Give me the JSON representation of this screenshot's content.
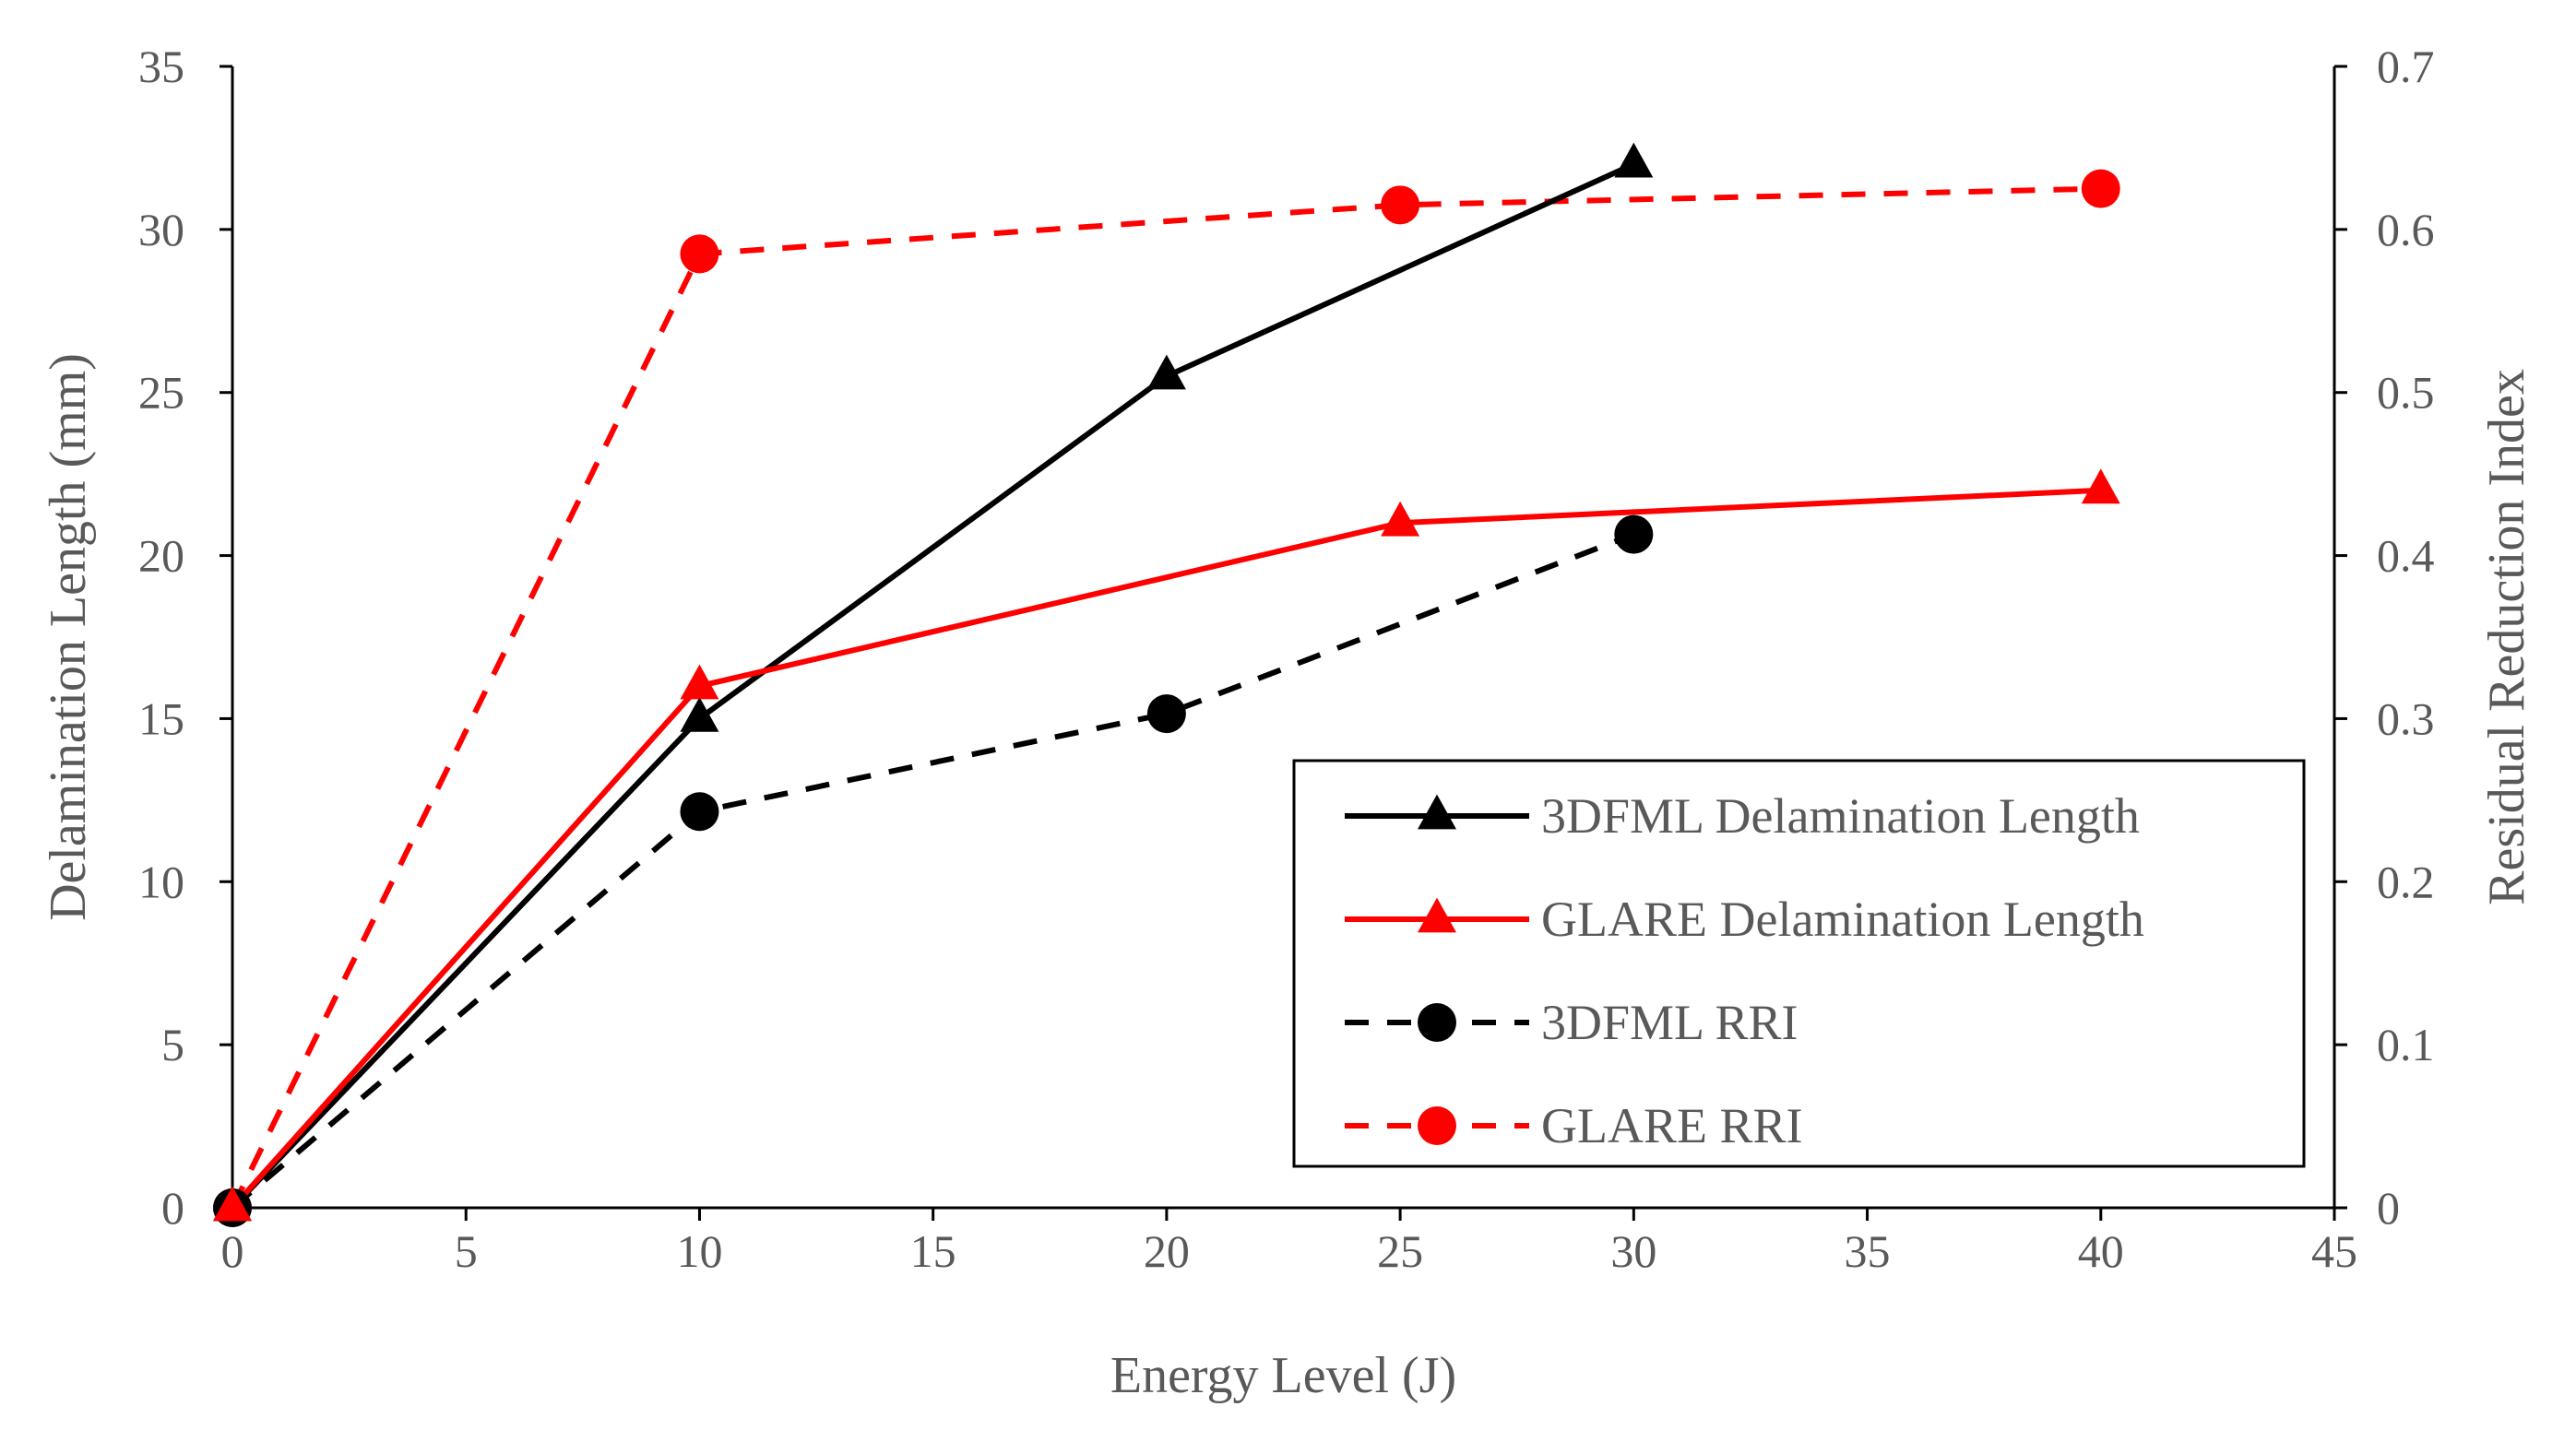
{
  "chart_data": {
    "type": "line",
    "title": "",
    "xlabel": "Energy Level (J)",
    "ylabel": "Delamination Length (mm)",
    "y2label": "Residual Reduction Index",
    "xlim": [
      0,
      45
    ],
    "ylim": [
      0,
      35
    ],
    "y2lim": [
      0,
      0.7
    ],
    "xticks": [
      "0",
      "5",
      "10",
      "15",
      "20",
      "25",
      "30",
      "35",
      "40",
      "45"
    ],
    "yticks": [
      "0",
      "5",
      "10",
      "15",
      "20",
      "25",
      "30",
      "35"
    ],
    "y2ticks": [
      "0",
      "0.1",
      "0.2",
      "0.3",
      "0.4",
      "0.5",
      "0.6",
      "0.7"
    ],
    "grid": false,
    "legend_position": "bottom-right",
    "series": [
      {
        "name": "3DFML Delamination Length",
        "axis": "left",
        "color": "#000000",
        "line_style": "solid",
        "marker": "triangle",
        "x": [
          0,
          10,
          20,
          30
        ],
        "y": [
          0,
          15,
          25.5,
          32
        ]
      },
      {
        "name": "GLARE Delamination Length",
        "axis": "left",
        "color": "#ff0000",
        "line_style": "solid",
        "marker": "triangle",
        "x": [
          0,
          10,
          25,
          40
        ],
        "y": [
          0,
          16,
          21,
          22
        ]
      },
      {
        "name": "3DFML RRI",
        "axis": "right",
        "color": "#000000",
        "line_style": "dashed",
        "marker": "circle",
        "x": [
          0,
          10,
          20,
          30
        ],
        "y": [
          0,
          0.243,
          0.303,
          0.413
        ]
      },
      {
        "name": "GLARE RRI",
        "axis": "right",
        "color": "#ff0000",
        "line_style": "dashed",
        "marker": "circle",
        "x": [
          0,
          10,
          25,
          40
        ],
        "y": [
          0,
          0.585,
          0.615,
          0.625
        ]
      }
    ]
  }
}
